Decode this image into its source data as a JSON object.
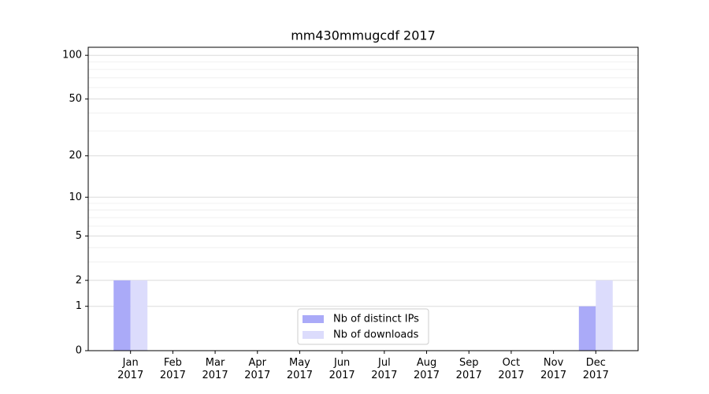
{
  "chart_data": {
    "type": "bar",
    "title": "mm430mmugcdf 2017",
    "categories": [
      "Jan\n2017",
      "Feb\n2017",
      "Mar\n2017",
      "Apr\n2017",
      "May\n2017",
      "Jun\n2017",
      "Jul\n2017",
      "Aug\n2017",
      "Sep\n2017",
      "Oct\n2017",
      "Nov\n2017",
      "Dec\n2017"
    ],
    "series": [
      {
        "name": "Nb of distinct IPs",
        "color": "#aaaaf8",
        "values": [
          2,
          0,
          0,
          0,
          0,
          0,
          0,
          0,
          0,
          0,
          0,
          1
        ]
      },
      {
        "name": "Nb of downloads",
        "color": "#dcdcfc",
        "values": [
          2,
          0,
          0,
          0,
          0,
          0,
          0,
          0,
          0,
          0,
          0,
          2
        ]
      }
    ],
    "yscale": "log1p",
    "ylim": [
      0,
      113.5
    ],
    "yticks": [
      0,
      1,
      2,
      5,
      10,
      20,
      50,
      100
    ],
    "minor_yticks": [
      3,
      4,
      6,
      7,
      8,
      9,
      30,
      40,
      60,
      70,
      80,
      90
    ],
    "grid": true,
    "legend": "lower center"
  }
}
